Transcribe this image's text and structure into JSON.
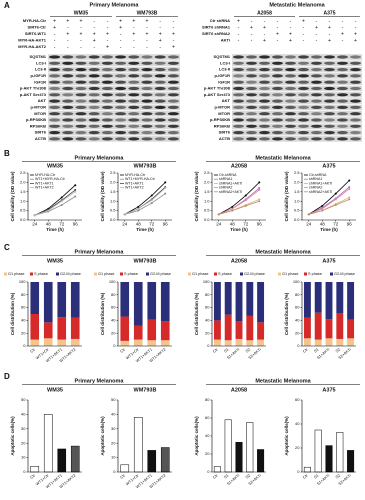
{
  "panel_a": {
    "label": "A",
    "groups": [
      {
        "title": "Primary Melanoma",
        "cells": [
          "WM35",
          "WM793B"
        ],
        "treatments": [
          {
            "name": "MYR-HA-Ctr",
            "signs": [
              "+",
              "+",
              "+",
              "-",
              "-",
              "+",
              "+",
              "+",
              "-",
              "-"
            ]
          },
          {
            "name": "SIRT6-Ctr",
            "signs": [
              "+",
              "-",
              "-",
              "-",
              "-",
              "+",
              "-",
              "-",
              "-",
              "-"
            ]
          },
          {
            "name": "SIRT6-WT1",
            "signs": [
              "-",
              "+",
              "+",
              "+",
              "+",
              "-",
              "+",
              "+",
              "+",
              "+"
            ]
          },
          {
            "name": "MYR-HA-AKT1",
            "signs": [
              "-",
              "-",
              "-",
              "+",
              "-",
              "-",
              "-",
              "-",
              "+",
              "-"
            ]
          },
          {
            "name": "MYR-HA-AKT2",
            "signs": [
              "-",
              "-",
              "-",
              "-",
              "+",
              "-",
              "-",
              "-",
              "-",
              "+"
            ]
          }
        ],
        "proteins": [
          "SQSTM1",
          "LC3-I",
          "LC3-II",
          "p-IGF1R",
          "IGF1R",
          "p-AKT Thr308",
          "p-AKT Ser473",
          "AKT",
          "p-MTOR",
          "MTOR",
          "p-RPS6KB",
          "RPS6KB",
          "SIRT6",
          "ACTB"
        ]
      },
      {
        "title": "Metastatic Melanoma",
        "cells": [
          "A2058",
          "A375"
        ],
        "treatments": [
          {
            "name": "Ctr shRNA",
            "signs": [
              "+",
              "-",
              "-",
              "-",
              "-",
              "+",
              "-",
              "-",
              "-",
              "-"
            ]
          },
          {
            "name": "SIRT6 shRNA1",
            "signs": [
              "-",
              "+",
              "+",
              "-",
              "-",
              "-",
              "+",
              "+",
              "-",
              "-"
            ]
          },
          {
            "name": "SIRT6 shRNA2",
            "signs": [
              "-",
              "-",
              "-",
              "+",
              "+",
              "-",
              "-",
              "-",
              "+",
              "+"
            ]
          },
          {
            "name": "AKTi",
            "signs": [
              "-",
              "-",
              "+",
              "-",
              "+",
              "-",
              "-",
              "+",
              "-",
              "+"
            ]
          }
        ],
        "proteins": [
          "SQSTM1",
          "LC3-I",
          "LC3-II",
          "p-IGF1R",
          "IGF1R",
          "p-AKT Thr308",
          "p-AKT Ser473",
          "AKT",
          "p-MTOR",
          "MTOR",
          "p-RPS6KB",
          "RPS6KB",
          "SIRT6",
          "ACTB"
        ]
      }
    ]
  },
  "panel_headers": [
    {
      "label": "B",
      "titles": [
        "Primary Melanoma",
        "Metastatic Melanoma"
      ]
    },
    {
      "label": "C",
      "titles": [
        "Primary Melanoma",
        "Metastatic Melanoma"
      ]
    },
    {
      "label": "D",
      "titles": [
        "Primary Melanoma",
        "Metastatic Melanoma"
      ]
    }
  ],
  "chart_data": [
    {
      "type": "line",
      "title": "WM35",
      "x_label": "Time (h)",
      "y_label": "Cell viability (OD value)",
      "x": [
        24,
        48,
        72,
        96
      ],
      "xlim": [
        12,
        108
      ],
      "xticks": [
        24,
        48,
        72,
        96
      ],
      "ylim": [
        0,
        2.5
      ],
      "yticks": [
        {
          "value": 0,
          "label": "0.0"
        },
        0.5,
        {
          "value": 1,
          "label": "1.0"
        },
        1.5,
        {
          "value": 2,
          "label": "2.0"
        },
        2.5
      ],
      "series": [
        {
          "name": "MYR-HA-Ctr",
          "color": "#000000",
          "values": [
            0.25,
            0.6,
            1.2,
            1.85
          ]
        },
        {
          "name": "WT1+MYR-HA-Ctr",
          "color": "#888888",
          "values": [
            0.25,
            0.45,
            0.8,
            1.25
          ]
        },
        {
          "name": "WT1+AKT1",
          "color": "#444444",
          "values": [
            0.25,
            0.55,
            1.05,
            1.6
          ]
        },
        {
          "name": "WT1+AKT2",
          "color": "#bbbbbb",
          "values": [
            0.25,
            0.5,
            1.0,
            1.5
          ]
        }
      ]
    },
    {
      "type": "line",
      "title": "WM793B",
      "x_label": "Time (h)",
      "y_label": "Cell viability (OD value)",
      "x": [
        24,
        48,
        72,
        96
      ],
      "xlim": [
        12,
        108
      ],
      "xticks": [
        24,
        48,
        72,
        96
      ],
      "ylim": [
        0,
        2.5
      ],
      "yticks": [
        {
          "value": 0,
          "label": "0.0"
        },
        0.5,
        {
          "value": 1,
          "label": "1.0"
        },
        1.5,
        {
          "value": 2,
          "label": "2.0"
        },
        2.5
      ],
      "series": [
        {
          "name": "MYR-HA-Ctr",
          "color": "#000000",
          "values": [
            0.3,
            0.7,
            1.3,
            2.0
          ]
        },
        {
          "name": "WT1+MYR-HA-Ctr",
          "color": "#888888",
          "values": [
            0.3,
            0.5,
            0.9,
            1.4
          ]
        },
        {
          "name": "WT1+AKT1",
          "color": "#444444",
          "values": [
            0.3,
            0.6,
            1.1,
            1.75
          ]
        },
        {
          "name": "WT1+AKT2",
          "color": "#bbbbbb",
          "values": [
            0.3,
            0.6,
            1.05,
            1.7
          ]
        }
      ]
    },
    {
      "type": "line",
      "title": "A2058",
      "x_label": "Time (h)",
      "y_label": "Cell viability (OD value)",
      "x": [
        24,
        48,
        72,
        96
      ],
      "xlim": [
        12,
        108
      ],
      "xticks": [
        24,
        48,
        72,
        96
      ],
      "ylim": [
        0,
        2.5
      ],
      "yticks": [
        {
          "value": 0,
          "label": "0.0"
        },
        0.5,
        {
          "value": 1,
          "label": "1.0"
        },
        1.5,
        {
          "value": 2,
          "label": "2.0"
        },
        2.5
      ],
      "series": [
        {
          "name": "Ctr-shRNA",
          "color": "#000000",
          "values": [
            0.3,
            0.7,
            1.3,
            2.0
          ]
        },
        {
          "name": "shRNA1",
          "color": "#b06bc0",
          "values": [
            0.3,
            0.6,
            1.1,
            1.7
          ]
        },
        {
          "name": "shRNA1+AKTi",
          "color": "#d4b483",
          "values": [
            0.3,
            0.5,
            0.8,
            1.1
          ]
        },
        {
          "name": "shRNA2",
          "color": "#e080a0",
          "values": [
            0.3,
            0.6,
            1.05,
            1.6
          ]
        },
        {
          "name": "shRNA2+AKTi",
          "color": "#c09060",
          "values": [
            0.3,
            0.5,
            0.75,
            1.0
          ]
        }
      ]
    },
    {
      "type": "line",
      "title": "A375",
      "x_label": "Time (h)",
      "y_label": "Cell viability (OD value)",
      "x": [
        24,
        48,
        72,
        96
      ],
      "xlim": [
        12,
        108
      ],
      "xticks": [
        24,
        48,
        72,
        96
      ],
      "ylim": [
        0,
        2.5
      ],
      "yticks": [
        {
          "value": 0,
          "label": "0.0"
        },
        0.5,
        {
          "value": 1,
          "label": "1.0"
        },
        1.5,
        {
          "value": 2,
          "label": "2.0"
        },
        2.5
      ],
      "series": [
        {
          "name": "Ctr-shRNA",
          "color": "#000000",
          "values": [
            0.3,
            0.75,
            1.4,
            2.1
          ]
        },
        {
          "name": "shRNA1",
          "color": "#b06bc0",
          "values": [
            0.3,
            0.65,
            1.15,
            1.75
          ]
        },
        {
          "name": "shRNA1+AKTi",
          "color": "#d4b483",
          "values": [
            0.3,
            0.5,
            0.85,
            1.2
          ]
        },
        {
          "name": "shRNA2",
          "color": "#e080a0",
          "values": [
            0.3,
            0.6,
            1.1,
            1.65
          ]
        },
        {
          "name": "shRNA2+AKTi",
          "color": "#c09060",
          "values": [
            0.3,
            0.5,
            0.8,
            1.1
          ]
        }
      ]
    },
    {
      "type": "stacked_bar",
      "title": "WM35",
      "y_label": "Cell distribution (%)",
      "categories": [
        "Ctr",
        "WT1+Ctr",
        "WT1+AKT1",
        "WT1+AKT2"
      ],
      "ylim": [
        0,
        100
      ],
      "yticks": [
        0,
        20,
        40,
        60,
        80,
        100
      ],
      "series": [
        {
          "name": "G1 phase",
          "color": "#f4c48c",
          "values": [
            10,
            12,
            10,
            11
          ]
        },
        {
          "name": "S phase",
          "color": "#d62a2a",
          "values": [
            40,
            25,
            35,
            33
          ]
        },
        {
          "name": "G2-M phase",
          "color": "#2b2f7a",
          "values": [
            50,
            63,
            55,
            56
          ]
        }
      ]
    },
    {
      "type": "stacked_bar",
      "title": "WM793B",
      "y_label": "Cell distribution (%)",
      "categories": [
        "Ctr",
        "WT1+Ctr",
        "WT1+AKT1",
        "WT1+AKT2"
      ],
      "ylim": [
        0,
        100
      ],
      "yticks": [
        0,
        20,
        40,
        60,
        80,
        100
      ],
      "series": [
        {
          "name": "G1 phase",
          "color": "#f4c48c",
          "values": [
            8,
            10,
            9,
            9
          ]
        },
        {
          "name": "S phase",
          "color": "#d62a2a",
          "values": [
            38,
            22,
            32,
            30
          ]
        },
        {
          "name": "G2-M phase",
          "color": "#2b2f7a",
          "values": [
            54,
            68,
            59,
            61
          ]
        }
      ]
    },
    {
      "type": "stacked_bar",
      "title": "A2058",
      "y_label": "Cell distribution (%)",
      "categories": [
        "Ctr",
        "S1",
        "S1+AKTi",
        "S2",
        "S2+AKTi"
      ],
      "ylim": [
        0,
        100
      ],
      "yticks": [
        0,
        20,
        40,
        60,
        80,
        100
      ],
      "series": [
        {
          "name": "G1 phase",
          "color": "#f4c48c",
          "values": [
            10,
            9,
            11,
            9,
            10
          ]
        },
        {
          "name": "S phase",
          "color": "#d62a2a",
          "values": [
            30,
            40,
            28,
            38,
            27
          ]
        },
        {
          "name": "G2-M phase",
          "color": "#2b2f7a",
          "values": [
            60,
            51,
            61,
            53,
            63
          ]
        }
      ]
    },
    {
      "type": "stacked_bar",
      "title": "A375",
      "y_label": "Cell distribution (%)",
      "categories": [
        "Ctr",
        "S1",
        "S1+AKTi",
        "S2",
        "S2+AKTi"
      ],
      "ylim": [
        0,
        100
      ],
      "yticks": [
        0,
        20,
        40,
        60,
        80,
        100
      ],
      "series": [
        {
          "name": "G1 phase",
          "color": "#f4c48c",
          "values": [
            12,
            10,
            12,
            11,
            12
          ]
        },
        {
          "name": "S phase",
          "color": "#d62a2a",
          "values": [
            32,
            42,
            30,
            40,
            29
          ]
        },
        {
          "name": "G2-M phase",
          "color": "#2b2f7a",
          "values": [
            56,
            48,
            58,
            49,
            59
          ]
        }
      ]
    },
    {
      "type": "bar",
      "title": "WM35",
      "y_label": "Apoptotic cells(%)",
      "categories": [
        "Ctr",
        "WT1+Ctr",
        "WT1+AKT1",
        "WT1+AKT2"
      ],
      "values": [
        4,
        40,
        16,
        18
      ],
      "colors": [
        "#ffffff",
        "#ffffff",
        "#111111",
        "#555555"
      ],
      "ylim": [
        0,
        50
      ],
      "yticks": [
        0,
        10,
        20,
        30,
        40,
        50
      ]
    },
    {
      "type": "bar",
      "title": "WM793B",
      "y_label": "Apoptotic cells(%)",
      "categories": [
        "Ctr",
        "WT1+Ctr",
        "WT1+AKT1",
        "WT1+AKT2"
      ],
      "values": [
        5,
        38,
        15,
        17
      ],
      "colors": [
        "#ffffff",
        "#ffffff",
        "#111111",
        "#555555"
      ],
      "ylim": [
        0,
        50
      ],
      "yticks": [
        0,
        10,
        20,
        30,
        40,
        50
      ]
    },
    {
      "type": "bar",
      "title": "A2058",
      "y_label": "Apoptotic cells(%)",
      "categories": [
        "Ctr",
        "S1",
        "S1+AKTi",
        "S2",
        "S2+AKTi"
      ],
      "values": [
        6,
        58,
        33,
        55,
        25
      ],
      "colors": [
        "#ffffff",
        "#ffffff",
        "#111111",
        "#ffffff",
        "#111111"
      ],
      "ylim": [
        0,
        80
      ],
      "yticks": [
        0,
        20,
        40,
        60,
        80
      ]
    },
    {
      "type": "bar",
      "title": "A375",
      "y_label": "Apoptotic cells(%)",
      "categories": [
        "Ctr",
        "S1",
        "S1+AKTi",
        "S2",
        "S2+AKTi"
      ],
      "values": [
        4,
        35,
        22,
        33,
        18
      ],
      "colors": [
        "#ffffff",
        "#ffffff",
        "#111111",
        "#ffffff",
        "#111111"
      ],
      "ylim": [
        0,
        60
      ],
      "yticks": [
        0,
        20,
        40,
        60
      ]
    }
  ]
}
